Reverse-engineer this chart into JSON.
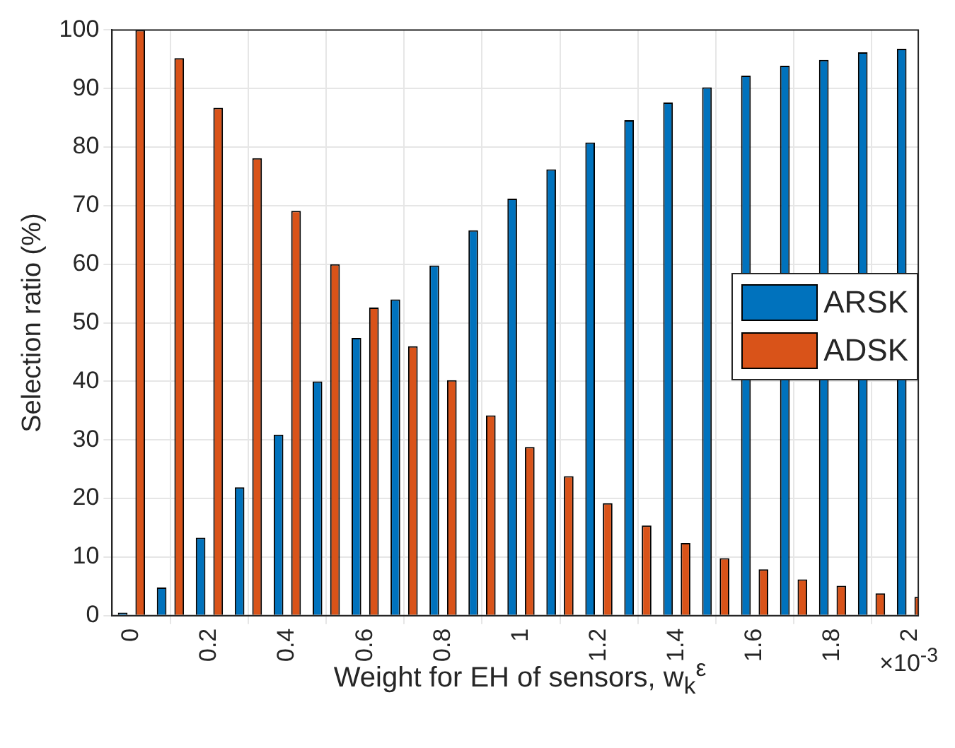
{
  "chart_data": {
    "type": "bar",
    "xlabel": "Weight for EH of sensors,  w$_{k}$$^{ε}$",
    "ylabel": "Selection ratio (%)",
    "annotations": [
      "×10$^{-3}$"
    ],
    "x": [
      0,
      0.1,
      0.2,
      0.3,
      0.4,
      0.5,
      0.6,
      0.7,
      0.8,
      0.9,
      1,
      1.1,
      1.2,
      1.3,
      1.4,
      1.5,
      1.6,
      1.7,
      1.8,
      1.9,
      2
    ],
    "series": [
      {
        "name": "ARSK",
        "color": "#0072bd",
        "values": [
          0.5,
          4.8,
          13.3,
          21.9,
          30.9,
          40,
          47.4,
          54,
          59.8,
          65.8,
          71.2,
          76.2,
          80.8,
          84.6,
          87.6,
          90.2,
          92.2,
          93.9,
          94.9,
          96.2,
          96.8
        ]
      },
      {
        "name": "ADSK",
        "color": "#d95319",
        "values": [
          100,
          95.2,
          86.7,
          78.1,
          69.1,
          60,
          52.6,
          46,
          40.2,
          34.2,
          28.8,
          23.8,
          19.2,
          15.4,
          12.4,
          9.8,
          7.9,
          6.2,
          5.1,
          3.8,
          3.2
        ]
      }
    ],
    "xlim": [
      -0.05,
      2.02
    ],
    "xticks": [
      0,
      0.2,
      0.4,
      0.6,
      0.8,
      1,
      1.2,
      1.4,
      1.6,
      1.8,
      2
    ],
    "ylim": [
      0,
      100
    ],
    "yticks": [
      0,
      10,
      20,
      30,
      40,
      50,
      60,
      70,
      80,
      90,
      100
    ],
    "grid": true,
    "legend": "right"
  }
}
